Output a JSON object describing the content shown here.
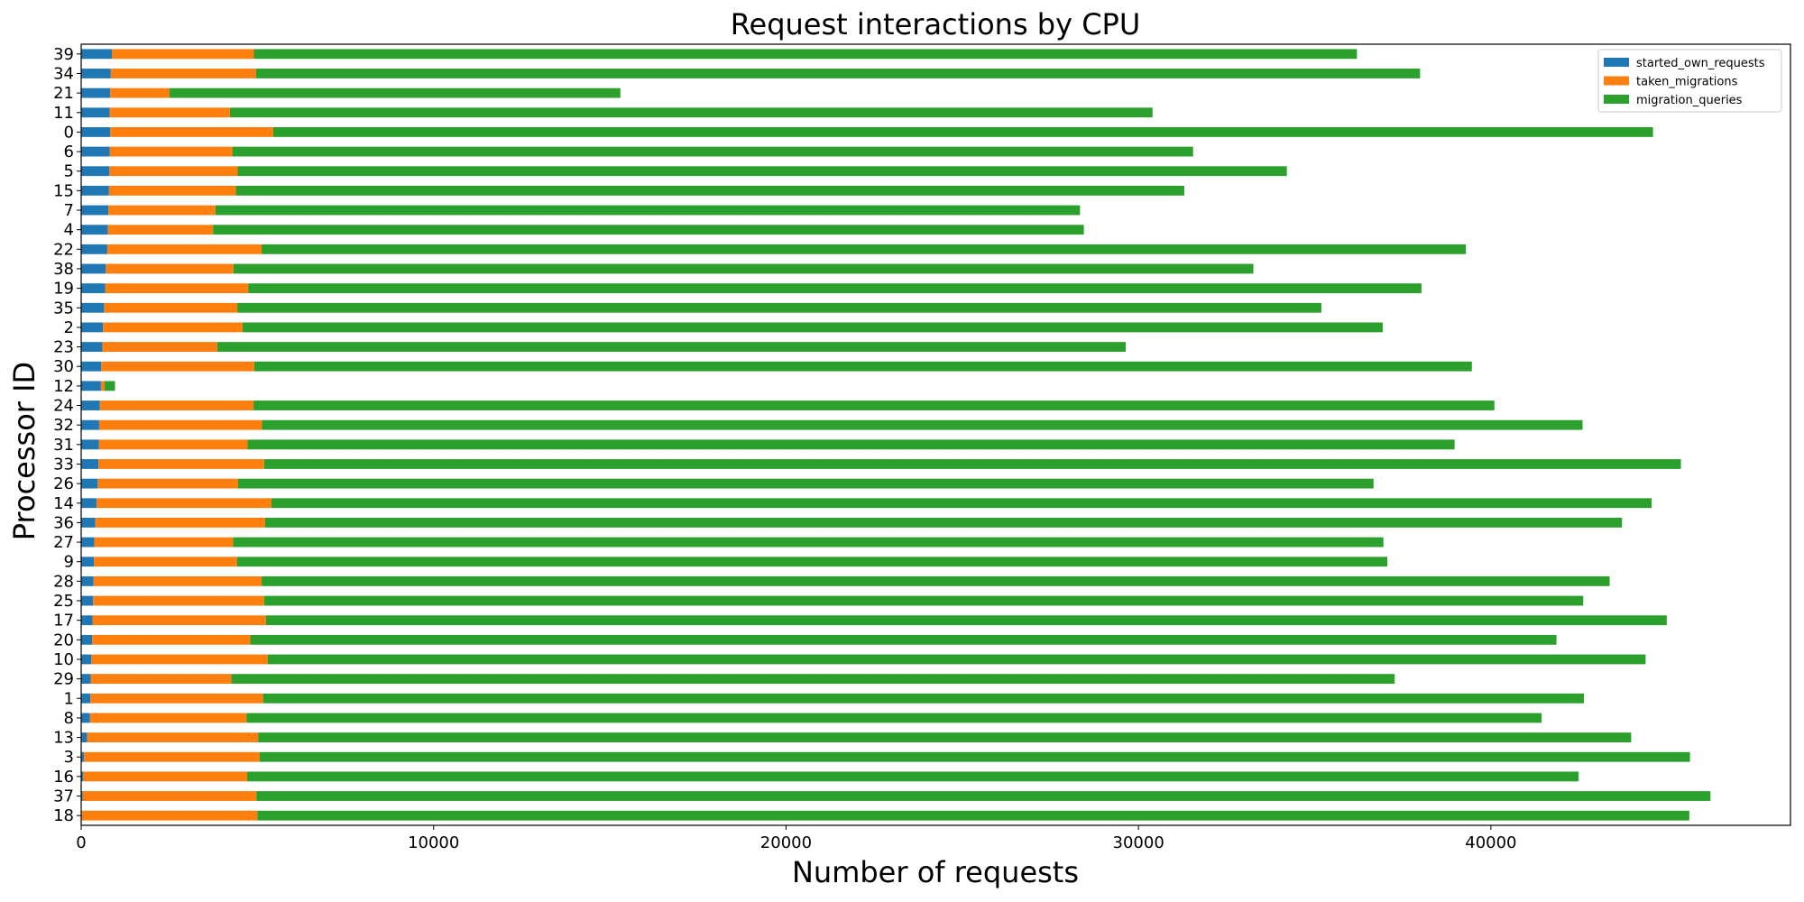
{
  "chart_data": {
    "type": "bar",
    "orientation": "horizontal",
    "stacked": true,
    "title": "Request interactions by CPU",
    "xlabel": "Number of requests",
    "ylabel": "Processor ID",
    "xlim": [
      0,
      48500
    ],
    "xticks": [
      0,
      10000,
      20000,
      30000,
      40000
    ],
    "grid": false,
    "legend_position": "top-right",
    "categories": [
      "39",
      "34",
      "21",
      "11",
      "0",
      "6",
      "5",
      "15",
      "7",
      "4",
      "22",
      "38",
      "19",
      "35",
      "2",
      "23",
      "30",
      "12",
      "24",
      "32",
      "31",
      "33",
      "26",
      "14",
      "36",
      "27",
      "9",
      "28",
      "25",
      "17",
      "20",
      "10",
      "29",
      "1",
      "8",
      "13",
      "3",
      "16",
      "37",
      "18"
    ],
    "series": [
      {
        "name": "started_own_requests",
        "color": "#1f77b4",
        "values": [
          870,
          840,
          820,
          810,
          820,
          810,
          800,
          790,
          770,
          760,
          740,
          700,
          680,
          650,
          620,
          600,
          570,
          560,
          530,
          510,
          500,
          490,
          470,
          440,
          400,
          370,
          360,
          350,
          340,
          320,
          310,
          290,
          270,
          260,
          250,
          170,
          80,
          60,
          40,
          20
        ]
      },
      {
        "name": "taken_migrations",
        "color": "#ff7f0e",
        "values": [
          4030,
          4120,
          1680,
          3410,
          4630,
          3480,
          3640,
          3600,
          3040,
          2980,
          4380,
          3620,
          4060,
          3780,
          3960,
          3260,
          4340,
          100,
          4360,
          4620,
          4220,
          4700,
          3980,
          4960,
          4820,
          3940,
          4060,
          4770,
          4850,
          4920,
          4490,
          5000,
          3990,
          4900,
          4440,
          4850,
          4980,
          4650,
          4930,
          4980
        ]
      },
      {
        "name": "migration_queries",
        "color": "#2ca02c",
        "values": [
          31300,
          33030,
          12800,
          26180,
          39150,
          27260,
          29770,
          26910,
          24530,
          24710,
          34170,
          28940,
          33290,
          30760,
          32350,
          25780,
          34550,
          300,
          35210,
          37470,
          34250,
          40200,
          32220,
          39160,
          38500,
          32640,
          32640,
          38250,
          37430,
          39750,
          37060,
          39100,
          33010,
          37480,
          36750,
          38960,
          40590,
          37780,
          41260,
          40630
        ]
      }
    ]
  }
}
